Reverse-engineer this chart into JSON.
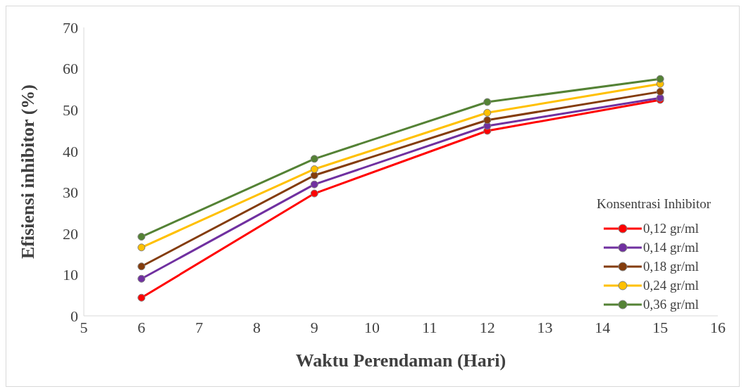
{
  "chart_data": {
    "type": "line",
    "xlabel": "Waktu Perendaman (Hari)",
    "ylabel": "Efisiensi inhibitor  (%)",
    "legend_title": "Konsentrasi Inhibitor",
    "legend": "right",
    "grid": false,
    "marker": "circle",
    "line_style": "solid",
    "x": [
      6,
      9,
      12,
      15
    ],
    "xlim": [
      5,
      16
    ],
    "xticks": [
      5,
      6,
      7,
      8,
      9,
      10,
      11,
      12,
      13,
      14,
      15,
      16
    ],
    "ylim": [
      0,
      70
    ],
    "yticks": [
      0,
      10,
      20,
      30,
      40,
      50,
      60,
      70
    ],
    "series": [
      {
        "name": "0,12 gr/ml",
        "color": "#ff0000",
        "values": [
          4.4,
          29.7,
          44.9,
          52.4
        ]
      },
      {
        "name": "0,14 gr/ml",
        "color": "#7030a0",
        "values": [
          9.0,
          31.9,
          46.1,
          52.9
        ]
      },
      {
        "name": "0,18 gr/ml",
        "color": "#843c0c",
        "values": [
          12.0,
          34.1,
          47.5,
          54.4
        ]
      },
      {
        "name": "0,24 gr/ml",
        "color": "#ffc000",
        "values": [
          16.6,
          35.6,
          49.3,
          56.3
        ]
      },
      {
        "name": "0,36 gr/ml",
        "color": "#548235",
        "values": [
          19.2,
          38.1,
          51.9,
          57.5
        ]
      }
    ]
  }
}
